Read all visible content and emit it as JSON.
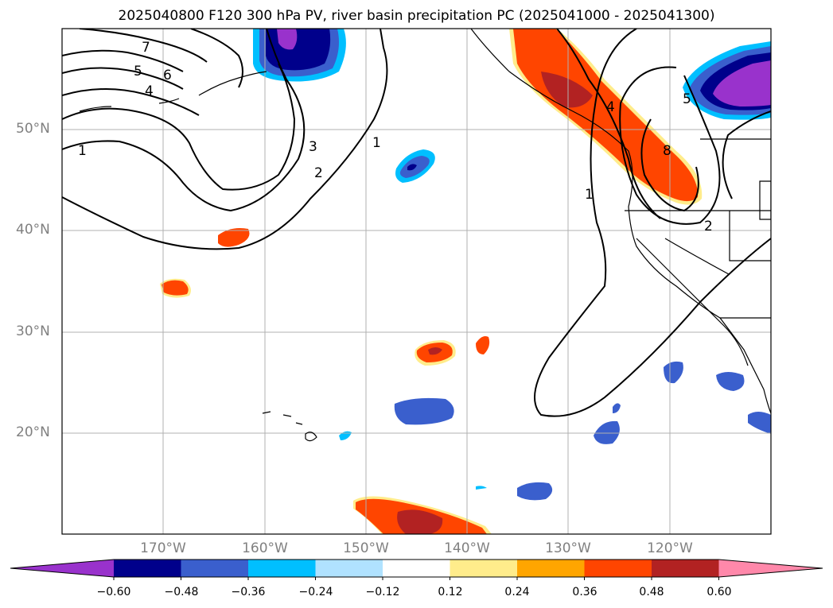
{
  "title": "2025040800 F120 300 hPa PV, river basin precipitation PC (2025041000 - 2025041300)",
  "lat_labels": [
    "50°N",
    "40°N",
    "30°N",
    "20°N"
  ],
  "lon_labels": [
    "170°W",
    "160°W",
    "150°W",
    "140°W",
    "130°W",
    "120°W"
  ],
  "colorbar": {
    "ticks": [
      "−0.60",
      "−0.48",
      "−0.36",
      "−0.24",
      "−0.12",
      "0.12",
      "0.24",
      "0.36",
      "0.48",
      "0.60"
    ],
    "colors": [
      "#9932cc",
      "#00008b",
      "#3a5fcd",
      "#00bfff",
      "#b0e2ff",
      "#ffffff",
      "#ffec8b",
      "#ffa500",
      "#ff4500",
      "#b22222",
      "#ff88aa"
    ]
  },
  "contour_labels": [
    "7",
    "6",
    "5",
    "4",
    "1",
    "3",
    "2",
    "1",
    "1",
    "4",
    "5",
    "8",
    "2"
  ]
}
